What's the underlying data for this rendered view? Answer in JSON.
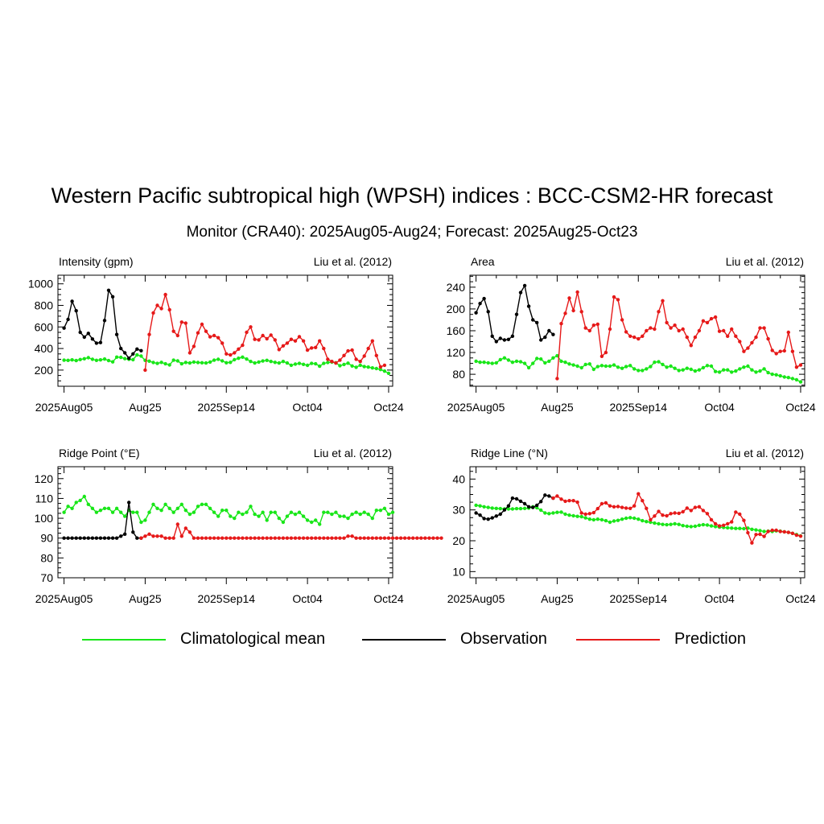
{
  "title": "Western Pacific subtropical high (WPSH) indices : BCC-CSM2-HR forecast",
  "subtitle": "Monitor (CRA40): 2025Aug05-Aug24; Forecast: 2025Aug25-Oct23",
  "colors": {
    "climatology": "#19e619",
    "observation": "#000000",
    "prediction": "#e61919"
  },
  "legend": {
    "climatology": "Climatological mean",
    "observation": "Observation",
    "prediction": "Prediction"
  },
  "chart_data": [
    {
      "type": "line",
      "title": "Intensity (gpm)",
      "reference": "Liu et al. (2012)",
      "x_tick_labels": [
        "2025Aug05",
        "Aug25",
        "2025Sep14",
        "Oct04",
        "Oct24"
      ],
      "x_tick_days": [
        0,
        20,
        40,
        60,
        80
      ],
      "ylim": [
        50,
        1080
      ],
      "y_ticks": [
        200,
        400,
        600,
        800,
        1000
      ],
      "climatology": [
        292,
        290,
        295,
        288,
        298,
        305,
        315,
        300,
        290,
        295,
        302,
        288,
        276,
        320,
        318,
        306,
        300,
        296,
        340,
        330,
        290,
        283,
        270,
        262,
        272,
        258,
        248,
        292,
        285,
        258,
        271,
        266,
        275,
        270,
        268,
        266,
        275,
        292,
        300,
        285,
        268,
        272,
        296,
        310,
        320,
        302,
        280,
        266,
        275,
        284,
        290,
        280,
        272,
        266,
        280,
        266,
        245,
        255,
        262,
        253,
        244,
        262,
        258,
        236,
        262,
        270,
        274,
        268,
        240,
        252,
        264,
        238,
        226,
        245,
        232,
        228,
        220,
        214,
        205,
        190,
        170
      ],
      "observation": [
        590,
        670,
        838,
        750,
        550,
        505,
        540,
        488,
        450,
        455,
        660,
        940,
        880,
        530,
        400,
        360,
        310,
        350,
        395,
        380
      ],
      "prediction_start_day": 20,
      "prediction": [
        200,
        530,
        730,
        800,
        770,
        900,
        760,
        560,
        520,
        645,
        635,
        360,
        420,
        545,
        625,
        560,
        508,
        520,
        500,
        450,
        350,
        340,
        360,
        395,
        430,
        550,
        600,
        485,
        480,
        520,
        490,
        525,
        480,
        390,
        425,
        450,
        485,
        470,
        510,
        470,
        385,
        405,
        410,
        470,
        400,
        300,
        280,
        265,
        292,
        335,
        378,
        385,
        300,
        280,
        330,
        400,
        470,
        335,
        230,
        245
      ]
    },
    {
      "type": "line",
      "title": "Area",
      "reference": "Liu et al. (2012)",
      "x_tick_labels": [
        "2025Aug05",
        "Aug25",
        "2025Sep14",
        "Oct04",
        "Oct24"
      ],
      "x_tick_days": [
        0,
        20,
        40,
        60,
        80
      ],
      "ylim": [
        58,
        262
      ],
      "y_ticks": [
        80,
        120,
        160,
        200,
        240
      ],
      "climatology": [
        104,
        102,
        102,
        101,
        100,
        101,
        107,
        110,
        106,
        102,
        104,
        103,
        100,
        92,
        100,
        109,
        108,
        101,
        104,
        110,
        114,
        104,
        102,
        99,
        97,
        95,
        92,
        98,
        99,
        89,
        94,
        96,
        95,
        95,
        97,
        93,
        91,
        94,
        96,
        90,
        87,
        87,
        90,
        94,
        102,
        103,
        98,
        93,
        95,
        91,
        87,
        88,
        91,
        89,
        86,
        88,
        92,
        96,
        95,
        85,
        84,
        88,
        88,
        84,
        86,
        90,
        93,
        95,
        88,
        84,
        86,
        90,
        83,
        80,
        79,
        77,
        75,
        74,
        72,
        70,
        66
      ],
      "observation": [
        193,
        210,
        219,
        195,
        150,
        140,
        146,
        143,
        144,
        150,
        190,
        230,
        243,
        205,
        180,
        175,
        143,
        148,
        160,
        153
      ],
      "prediction_start_day": 20,
      "prediction": [
        72,
        173,
        192,
        220,
        197,
        231,
        195,
        165,
        160,
        170,
        172,
        113,
        120,
        163,
        222,
        217,
        180,
        158,
        150,
        148,
        145,
        150,
        160,
        165,
        163,
        195,
        215,
        175,
        165,
        170,
        160,
        163,
        148,
        133,
        148,
        160,
        178,
        175,
        182,
        185,
        159,
        160,
        150,
        163,
        150,
        140,
        122,
        128,
        138,
        148,
        165,
        165,
        145,
        124,
        118,
        122,
        123,
        157,
        122,
        93,
        97
      ]
    },
    {
      "type": "line",
      "title": "Ridge Point (°E)",
      "reference": "Liu et al. (2012)",
      "x_tick_labels": [
        "2025Aug05",
        "Aug25",
        "2025Sep14",
        "Oct04",
        "Oct24"
      ],
      "x_tick_days": [
        0,
        20,
        40,
        60,
        80
      ],
      "ylim": [
        70,
        126
      ],
      "y_ticks": [
        70,
        80,
        90,
        100,
        110,
        120
      ],
      "climatology": [
        103,
        106,
        105,
        108,
        109,
        111,
        107,
        105,
        103,
        104,
        105,
        105,
        103,
        105,
        103,
        101,
        104,
        103,
        103,
        98,
        99,
        103,
        107,
        105,
        104,
        107,
        105,
        103,
        105,
        107,
        104,
        102,
        103,
        106,
        107,
        107,
        105,
        103,
        101,
        104,
        104,
        101,
        100,
        103,
        102,
        103,
        106,
        102,
        101,
        103,
        99,
        103,
        103,
        100,
        98,
        101,
        103,
        102,
        103,
        101,
        99,
        98,
        99,
        97,
        103,
        103,
        102,
        103,
        101,
        101,
        100,
        102,
        103,
        102,
        103,
        102,
        100,
        104,
        104,
        105,
        102,
        103
      ],
      "observation": [
        90,
        90,
        90,
        90,
        90,
        90,
        90,
        90,
        90,
        90,
        90,
        90,
        90,
        90,
        91,
        92,
        108,
        93,
        90,
        90
      ],
      "prediction_start_day": 19,
      "prediction": [
        90,
        91,
        92,
        91,
        91,
        91,
        90,
        90,
        90,
        97,
        91,
        95,
        93,
        90,
        90,
        90,
        90,
        90,
        90,
        90,
        90,
        90,
        90,
        90,
        90,
        90,
        90,
        90,
        90,
        90,
        90,
        90,
        90,
        90,
        90,
        90,
        90,
        90,
        90,
        90,
        90,
        90,
        90,
        90,
        90,
        90,
        90,
        90,
        90,
        90,
        90,
        91,
        91,
        90,
        90,
        90,
        90,
        90,
        90,
        90,
        90,
        90,
        90,
        90,
        90,
        90,
        90,
        90,
        90,
        90,
        90,
        90,
        90,
        90,
        90
      ]
    },
    {
      "type": "line",
      "title": "Ridge Line (°N)",
      "reference": "Liu et al. (2012)",
      "x_tick_labels": [
        "2025Aug05",
        "Aug25",
        "2025Sep14",
        "Oct04",
        "Oct24"
      ],
      "x_tick_days": [
        0,
        20,
        40,
        60,
        80
      ],
      "ylim": [
        8,
        44
      ],
      "y_ticks": [
        10,
        20,
        30,
        40
      ],
      "climatology": [
        31.5,
        31.3,
        31.0,
        30.8,
        30.6,
        30.5,
        30.4,
        30.3,
        30.3,
        30.3,
        30.4,
        30.4,
        30.5,
        30.6,
        31.0,
        30.7,
        29.9,
        29.0,
        28.8,
        29.0,
        29.2,
        29.3,
        28.6,
        28.3,
        28.1,
        27.9,
        27.8,
        27.4,
        27.0,
        26.8,
        27.0,
        26.8,
        26.5,
        26.0,
        26.4,
        26.6,
        27.0,
        27.3,
        27.5,
        27.3,
        27.0,
        26.5,
        26.2,
        26.0,
        25.7,
        25.5,
        25.3,
        25.2,
        25.3,
        25.5,
        25.3,
        24.9,
        24.7,
        24.6,
        24.7,
        25.0,
        25.2,
        25.1,
        24.8,
        24.6,
        24.4,
        24.3,
        24.2,
        24.1,
        24.0,
        24.0,
        23.9,
        24.1,
        23.7,
        23.5,
        23.3,
        23.0,
        23.1,
        23.0,
        23.2,
        23.1,
        22.9,
        22.7,
        22.4,
        22.0,
        21.6
      ],
      "observation": [
        29.0,
        28.3,
        27.2,
        27.0,
        27.4,
        28.0,
        28.6,
        30.0,
        31.3,
        33.8,
        33.6,
        32.8,
        32.0,
        31.0,
        30.8,
        31.5,
        32.7,
        34.8,
        34.5,
        33.8
      ],
      "prediction_start_day": 19,
      "prediction": [
        33.8,
        34.5,
        33.5,
        32.8,
        33.0,
        33.0,
        32.5,
        29.0,
        28.6,
        28.8,
        29.1,
        30.4,
        32.0,
        32.3,
        31.3,
        31.0,
        31.1,
        30.8,
        30.6,
        30.5,
        31.3,
        35.2,
        33.0,
        30.5,
        26.8,
        28.0,
        29.5,
        28.3,
        28.1,
        28.8,
        29.0,
        28.9,
        29.4,
        30.6,
        29.8,
        30.8,
        31.0,
        29.8,
        28.8,
        26.8,
        25.5,
        24.8,
        25.0,
        25.5,
        26.1,
        29.3,
        28.6,
        26.6,
        22.6,
        19.3,
        22.0,
        22.1,
        21.4,
        23.0,
        23.4,
        23.4,
        23.0,
        22.9,
        22.7,
        22.4,
        21.8,
        21.5
      ]
    }
  ]
}
